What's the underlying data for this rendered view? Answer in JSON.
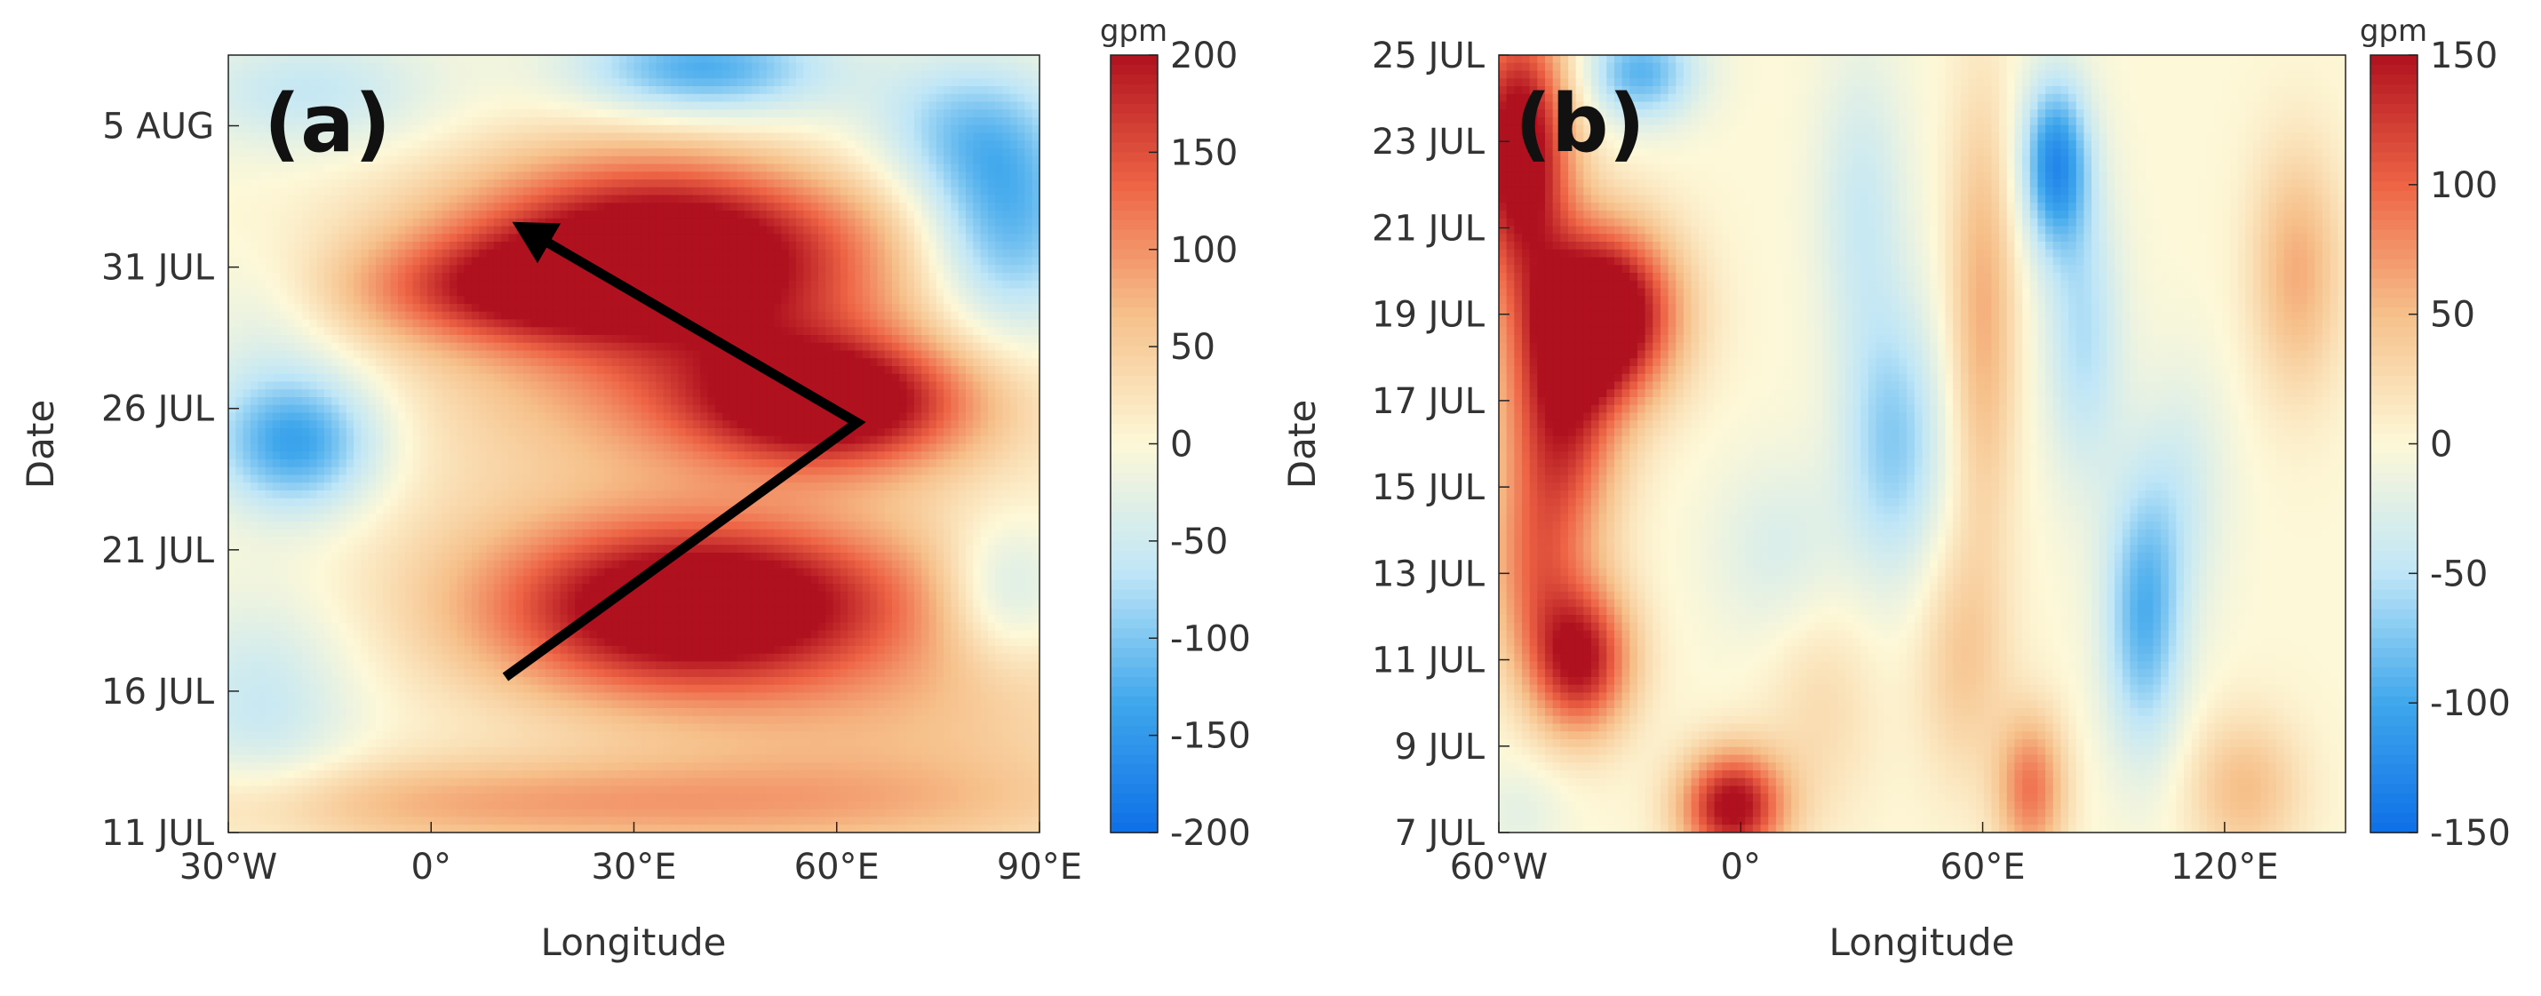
{
  "colors": {
    "min": "#0d6fe8",
    "low": "#3fa7ec",
    "mid_low": "#bfe6f7",
    "zero": "#fdf8d8",
    "mid_high": "#f6c08a",
    "high": "#ee6445",
    "max": "#b0111f",
    "arrow": "#000000"
  },
  "chart_data": [
    {
      "type": "heatmap",
      "panel_label": "(a)",
      "xlabel": "Longitude",
      "ylabel": "Date",
      "x_ticks": [
        {
          "value": -30,
          "label": "30°W"
        },
        {
          "value": 0,
          "label": "0°"
        },
        {
          "value": 30,
          "label": "30°E"
        },
        {
          "value": 60,
          "label": "60°E"
        },
        {
          "value": 90,
          "label": "90°E"
        }
      ],
      "y_ticks": [
        {
          "value": 0,
          "label": "11 JUL"
        },
        {
          "value": 5,
          "label": "16 JUL"
        },
        {
          "value": 10,
          "label": "21 JUL"
        },
        {
          "value": 15,
          "label": "26 JUL"
        },
        {
          "value": 20,
          "label": "31 JUL"
        },
        {
          "value": 25,
          "label": "5 AUG"
        }
      ],
      "xlim": [
        -30,
        90
      ],
      "ylim": [
        0,
        27.5
      ],
      "colorbar": {
        "unit": "gpm",
        "range": [
          -200,
          200
        ],
        "ticks": [
          200,
          150,
          100,
          50,
          0,
          -50,
          -100,
          -150,
          -200
        ]
      },
      "blobs": [
        {
          "x": 35,
          "y": 20.5,
          "sx": 22,
          "sy": 2.4,
          "v": 260
        },
        {
          "x": 10,
          "y": 19.2,
          "sx": 16,
          "sy": 1.3,
          "v": 110
        },
        {
          "x": 60,
          "y": 15.2,
          "sx": 14,
          "sy": 1.6,
          "v": 190
        },
        {
          "x": 45,
          "y": 15.5,
          "sx": 22,
          "sy": 2.0,
          "v": 70
        },
        {
          "x": 35,
          "y": 7.8,
          "sx": 20,
          "sy": 2.2,
          "v": 190
        },
        {
          "x": 50,
          "y": 8.5,
          "sx": 20,
          "sy": 1.8,
          "v": 70
        },
        {
          "x": 20,
          "y": 1.0,
          "sx": 45,
          "sy": 1.2,
          "v": 85
        },
        {
          "x": 70,
          "y": 4.5,
          "sx": 25,
          "sy": 3.5,
          "v": 55
        },
        {
          "x": 30,
          "y": 13,
          "sx": 40,
          "sy": 5,
          "v": 30
        },
        {
          "x": -20,
          "y": 13.8,
          "sx": 9,
          "sy": 1.8,
          "v": -150
        },
        {
          "x": -25,
          "y": 18,
          "sx": 8,
          "sy": 2,
          "v": -30
        },
        {
          "x": -25,
          "y": 4.5,
          "sx": 10,
          "sy": 3,
          "v": -60
        },
        {
          "x": 40,
          "y": 27,
          "sx": 13,
          "sy": 1.2,
          "v": -130
        },
        {
          "x": -18,
          "y": 26.2,
          "sx": 14,
          "sy": 1.5,
          "v": -60
        },
        {
          "x": 85,
          "y": 21.5,
          "sx": 9,
          "sy": 2.8,
          "v": -130
        },
        {
          "x": 78,
          "y": 25,
          "sx": 10,
          "sy": 1.8,
          "v": -70
        },
        {
          "x": 85,
          "y": 8.5,
          "sx": 7,
          "sy": 1.8,
          "v": -80
        },
        {
          "x": 55,
          "y": 24,
          "sx": 12,
          "sy": 2,
          "v": -15
        }
      ],
      "arrow": {
        "points": [
          {
            "lon": 11,
            "date": 5.5
          },
          {
            "lon": 63,
            "date": 14.5
          },
          {
            "lon": 12,
            "date": 21.6
          }
        ]
      }
    },
    {
      "type": "heatmap",
      "panel_label": "(b)",
      "xlabel": "Longitude",
      "ylabel": "Date",
      "x_ticks": [
        {
          "value": -60,
          "label": "60°W"
        },
        {
          "value": 0,
          "label": "0°"
        },
        {
          "value": 60,
          "label": "60°E"
        },
        {
          "value": 120,
          "label": "120°E"
        }
      ],
      "y_ticks": [
        {
          "value": 7,
          "label": "7 JUL"
        },
        {
          "value": 9,
          "label": "9 JUL"
        },
        {
          "value": 11,
          "label": "11 JUL"
        },
        {
          "value": 13,
          "label": "13 JUL"
        },
        {
          "value": 15,
          "label": "15 JUL"
        },
        {
          "value": 17,
          "label": "17 JUL"
        },
        {
          "value": 19,
          "label": "19 JUL"
        },
        {
          "value": 21,
          "label": "21 JUL"
        },
        {
          "value": 23,
          "label": "23 JUL"
        },
        {
          "value": 25,
          "label": "25 JUL"
        }
      ],
      "xlim": [
        -60,
        150
      ],
      "ylim": [
        7,
        25
      ],
      "colorbar": {
        "unit": "gpm",
        "range": [
          -150,
          150
        ],
        "ticks": [
          150,
          100,
          50,
          0,
          -50,
          -100,
          -150
        ]
      },
      "blobs": [
        {
          "x": -33,
          "y": 19,
          "sx": 12,
          "sy": 1.4,
          "v": 190
        },
        {
          "x": -55,
          "y": 22.8,
          "sx": 9,
          "sy": 2.2,
          "v": 180
        },
        {
          "x": -45,
          "y": 16.5,
          "sx": 10,
          "sy": 2.2,
          "v": 130
        },
        {
          "x": -40,
          "y": 11,
          "sx": 9,
          "sy": 1.2,
          "v": 150
        },
        {
          "x": -52,
          "y": 13,
          "sx": 8,
          "sy": 1.5,
          "v": 60
        },
        {
          "x": -2,
          "y": 7.6,
          "sx": 9,
          "sy": 0.9,
          "v": 160
        },
        {
          "x": 60,
          "y": 19,
          "sx": 6,
          "sy": 3.5,
          "v": 60
        },
        {
          "x": 55,
          "y": 11,
          "sx": 8,
          "sy": 2,
          "v": 40
        },
        {
          "x": 72,
          "y": 8,
          "sx": 6,
          "sy": 1.2,
          "v": 90
        },
        {
          "x": 125,
          "y": 8,
          "sx": 10,
          "sy": 1.2,
          "v": 50
        },
        {
          "x": 138,
          "y": 20,
          "sx": 8,
          "sy": 2,
          "v": 60
        },
        {
          "x": 20,
          "y": 10,
          "sx": 10,
          "sy": 2,
          "v": 25
        },
        {
          "x": 38,
          "y": 16,
          "sx": 9,
          "sy": 2.2,
          "v": -70
        },
        {
          "x": 30,
          "y": 21.5,
          "sx": 8,
          "sy": 2.5,
          "v": -40
        },
        {
          "x": 78,
          "y": 22.5,
          "sx": 6,
          "sy": 1.4,
          "v": -120
        },
        {
          "x": 85,
          "y": 18.5,
          "sx": 7,
          "sy": 2.4,
          "v": -55
        },
        {
          "x": 100,
          "y": 12,
          "sx": 7,
          "sy": 2.2,
          "v": -90
        },
        {
          "x": 110,
          "y": 15,
          "sx": 8,
          "sy": 2,
          "v": -30
        },
        {
          "x": -25,
          "y": 24.6,
          "sx": 10,
          "sy": 0.8,
          "v": -90
        },
        {
          "x": 10,
          "y": 13.5,
          "sx": 12,
          "sy": 1.5,
          "v": -30
        },
        {
          "x": -55,
          "y": 7.5,
          "sx": 8,
          "sy": 0.8,
          "v": -20
        }
      ]
    }
  ]
}
